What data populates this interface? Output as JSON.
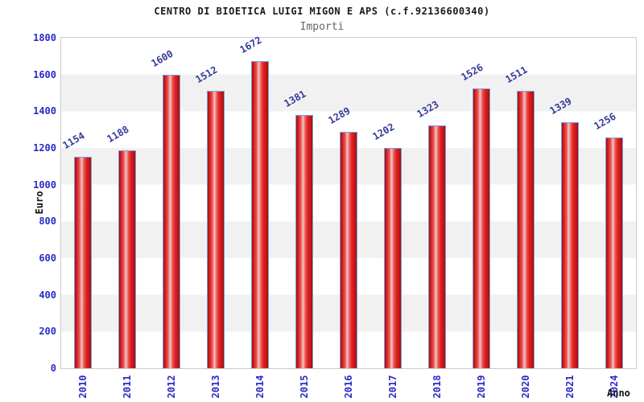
{
  "chart_data": {
    "type": "bar",
    "title": "CENTRO DI BIOETICA LUIGI MIGON E APS (c.f.92136600340)",
    "subtitle": "Importi",
    "xlabel": "Anno",
    "ylabel": "Euro",
    "categories": [
      "2010",
      "2011",
      "2012",
      "2013",
      "2014",
      "2015",
      "2016",
      "2017",
      "2018",
      "2019",
      "2020",
      "2021",
      "2024"
    ],
    "values": [
      1154,
      1188,
      1600,
      1512,
      1672,
      1381,
      1289,
      1202,
      1323,
      1526,
      1511,
      1339,
      1256
    ],
    "ylim": [
      0,
      1800
    ],
    "ytick_step": 200,
    "y_ticks": [
      0,
      200,
      400,
      600,
      800,
      1000,
      1200,
      1400,
      1600,
      1800
    ],
    "grid": "horizontal-bands-every-200",
    "legend": "none",
    "styles": {
      "background": "#ffffff",
      "band_color": "#f1f1f1",
      "frame_color": "#cccccc",
      "tick_label_color": "#2a2ac8",
      "value_label_color": "#333a99",
      "title_color": "#1a1a1a",
      "subtitle_color": "#666666",
      "axis_title_color": "#111111",
      "bar_border_color": "#7aa0dd",
      "bar_gradient": [
        "#9d1010",
        "#d42020",
        "#ec5050",
        "#eec6c6",
        "#ec5050",
        "#e02020",
        "#c31717",
        "#9d1010"
      ]
    }
  }
}
